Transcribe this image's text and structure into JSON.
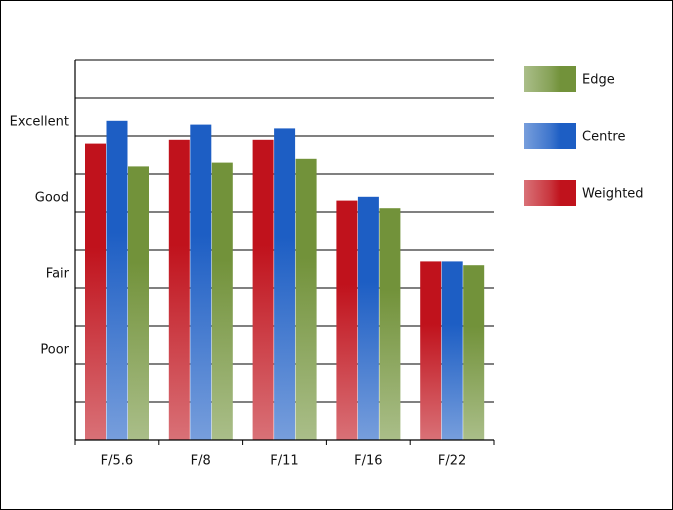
{
  "chart_data": {
    "type": "bar",
    "categories": [
      "F/5.6",
      "F/8",
      "F/11",
      "F/16",
      "F/22"
    ],
    "series": [
      {
        "name": "Weighted",
        "color": "#c0121c",
        "values": [
          7.8,
          7.9,
          7.9,
          6.3,
          4.7
        ]
      },
      {
        "name": "Centre",
        "color": "#1d5ec4",
        "values": [
          8.4,
          8.3,
          8.2,
          6.4,
          4.7
        ]
      },
      {
        "name": "Edge",
        "color": "#72923a",
        "values": [
          7.2,
          7.3,
          7.4,
          6.1,
          4.6
        ]
      }
    ],
    "ylim": [
      0,
      10
    ],
    "yticks": [
      {
        "value": 2,
        "label": "Poor"
      },
      {
        "value": 4,
        "label": "Fair"
      },
      {
        "value": 6,
        "label": "Good"
      },
      {
        "value": 8,
        "label": "Excellent"
      }
    ],
    "minor_yticks": [
      1,
      3,
      5,
      7,
      9,
      10
    ],
    "grid": true,
    "legend": "right"
  }
}
